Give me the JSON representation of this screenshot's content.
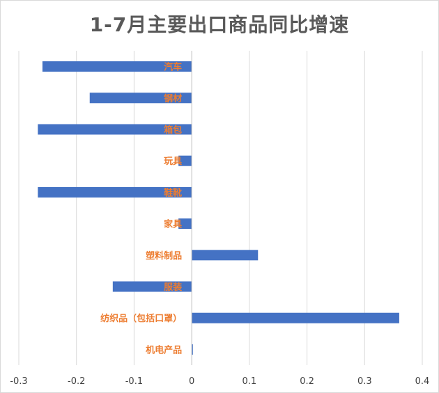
{
  "chart_data": {
    "type": "bar",
    "orientation": "horizontal",
    "title": "1-7月主要出口商品同比增速",
    "categories": [
      "机电产品",
      "纺织品（包括口罩）",
      "服装",
      "塑料制品",
      "家具",
      "鞋靴",
      "玩具",
      "箱包",
      "钢材",
      "汽车"
    ],
    "values": [
      0.002,
      0.36,
      -0.137,
      0.115,
      -0.023,
      -0.267,
      -0.023,
      -0.267,
      -0.177,
      -0.259
    ],
    "xlim": [
      -0.3,
      0.4
    ],
    "xticks": [
      "-0.3",
      "-0.2",
      "-0.1",
      "0",
      "0.1",
      "0.2",
      "0.3",
      "0.4"
    ],
    "xtick_values": [
      -0.3,
      -0.2,
      -0.1,
      0,
      0.1,
      0.2,
      0.3,
      0.4
    ],
    "grid": true,
    "bar_color": "#4472C4",
    "label_color": "#ED7D31"
  }
}
